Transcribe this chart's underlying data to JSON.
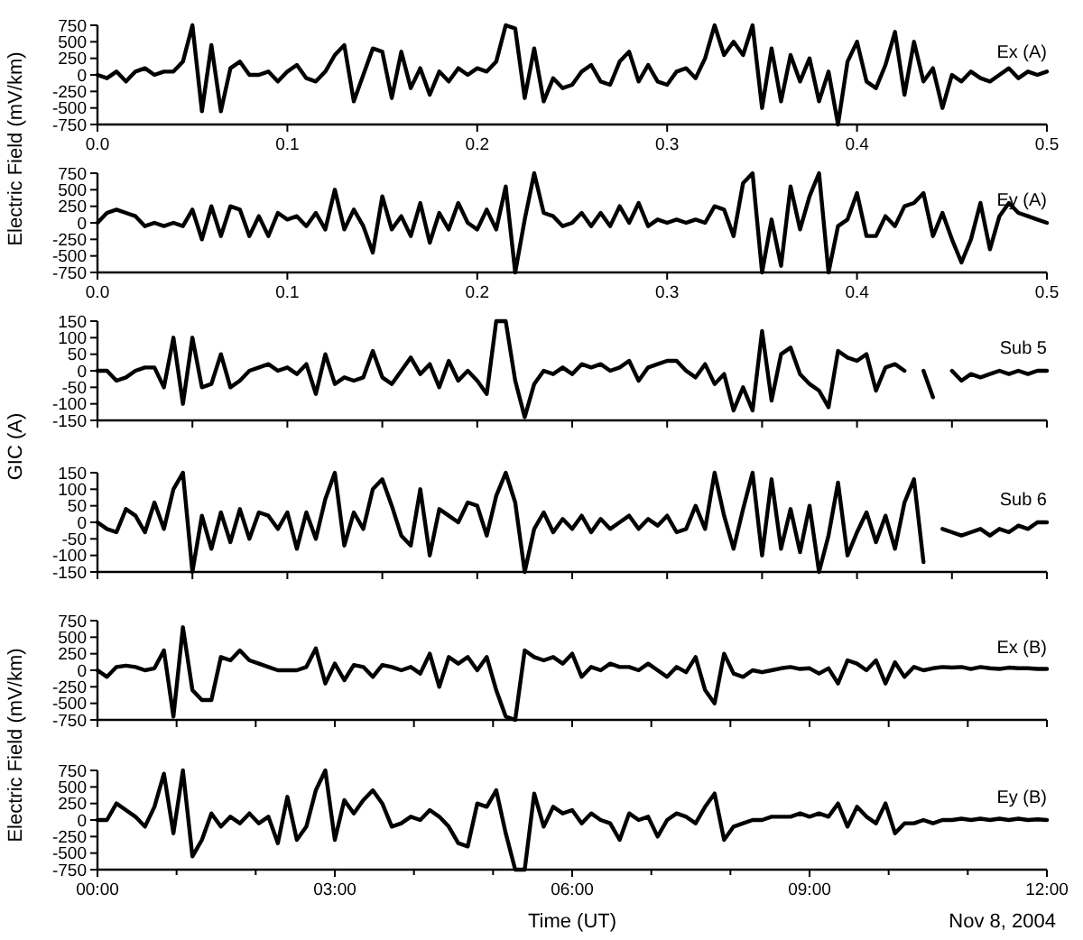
{
  "chart_data": [
    {
      "type": "line",
      "ylabel": "Electric Field (mV/km)",
      "xlim": [
        0,
        0.5
      ],
      "xticks": [
        {
          "value": 0,
          "label": "0.0"
        },
        0.1,
        0.2,
        0.3,
        0.4,
        0.5
      ],
      "ylim": [
        -750,
        750
      ],
      "yticks": [
        -750,
        -500,
        -250,
        0,
        250,
        500,
        750
      ],
      "x": [
        0,
        0.005,
        0.01,
        0.015,
        0.02,
        0.025,
        0.03,
        0.035,
        0.04,
        0.045,
        0.05,
        0.055,
        0.06,
        0.065,
        0.07,
        0.075,
        0.08,
        0.085,
        0.09,
        0.095,
        0.1,
        0.105,
        0.11,
        0.115,
        0.12,
        0.125,
        0.13,
        0.135,
        0.14,
        0.145,
        0.15,
        0.155,
        0.16,
        0.165,
        0.17,
        0.175,
        0.18,
        0.185,
        0.19,
        0.195,
        0.2,
        0.205,
        0.21,
        0.215,
        0.22,
        0.225,
        0.23,
        0.235,
        0.24,
        0.245,
        0.25,
        0.255,
        0.26,
        0.265,
        0.27,
        0.275,
        0.28,
        0.285,
        0.29,
        0.295,
        0.3,
        0.305,
        0.31,
        0.315,
        0.32,
        0.325,
        0.33,
        0.335,
        0.34,
        0.345,
        0.35,
        0.355,
        0.36,
        0.365,
        0.37,
        0.375,
        0.38,
        0.385,
        0.39,
        0.395,
        0.4,
        0.405,
        0.41,
        0.415,
        0.42,
        0.425,
        0.43,
        0.435,
        0.44,
        0.445,
        0.45,
        0.455,
        0.46,
        0.465,
        0.47,
        0.475,
        0.48,
        0.485,
        0.49,
        0.495,
        0.5
      ],
      "series": [
        {
          "name": "Ex (A)",
          "color": "#000000",
          "values": [
            0,
            -50,
            50,
            -100,
            50,
            100,
            0,
            50,
            50,
            200,
            750,
            -550,
            450,
            -550,
            100,
            200,
            0,
            0,
            50,
            -100,
            50,
            150,
            -50,
            -100,
            50,
            300,
            450,
            -400,
            0,
            400,
            350,
            -350,
            350,
            -200,
            100,
            -300,
            50,
            -100,
            100,
            0,
            100,
            50,
            200,
            750,
            700,
            -350,
            400,
            -400,
            -50,
            -200,
            -150,
            50,
            150,
            -100,
            -150,
            200,
            350,
            -100,
            150,
            -100,
            -150,
            50,
            100,
            -50,
            250,
            750,
            300,
            500,
            300,
            750,
            -500,
            400,
            -400,
            300,
            -100,
            250,
            -400,
            50,
            -750,
            200,
            500,
            -100,
            -200,
            150,
            650,
            -300,
            500,
            -100,
            100,
            -500,
            0,
            -100,
            50,
            -50,
            -100,
            0,
            100,
            -50,
            50,
            0,
            50
          ]
        }
      ]
    },
    {
      "type": "line",
      "xlim": [
        0,
        0.5
      ],
      "xticks": [
        {
          "value": 0,
          "label": "0.0"
        },
        0.1,
        0.2,
        0.3,
        0.4,
        0.5
      ],
      "ylim": [
        -750,
        750
      ],
      "yticks": [
        -750,
        -500,
        -250,
        0,
        250,
        500,
        750
      ],
      "x": [
        0,
        0.005,
        0.01,
        0.015,
        0.02,
        0.025,
        0.03,
        0.035,
        0.04,
        0.045,
        0.05,
        0.055,
        0.06,
        0.065,
        0.07,
        0.075,
        0.08,
        0.085,
        0.09,
        0.095,
        0.1,
        0.105,
        0.11,
        0.115,
        0.12,
        0.125,
        0.13,
        0.135,
        0.14,
        0.145,
        0.15,
        0.155,
        0.16,
        0.165,
        0.17,
        0.175,
        0.18,
        0.185,
        0.19,
        0.195,
        0.2,
        0.205,
        0.21,
        0.215,
        0.22,
        0.225,
        0.23,
        0.235,
        0.24,
        0.245,
        0.25,
        0.255,
        0.26,
        0.265,
        0.27,
        0.275,
        0.28,
        0.285,
        0.29,
        0.295,
        0.3,
        0.305,
        0.31,
        0.315,
        0.32,
        0.325,
        0.33,
        0.335,
        0.34,
        0.345,
        0.35,
        0.355,
        0.36,
        0.365,
        0.37,
        0.375,
        0.38,
        0.385,
        0.39,
        0.395,
        0.4,
        0.405,
        0.41,
        0.415,
        0.42,
        0.425,
        0.43,
        0.435,
        0.44,
        0.445,
        0.45,
        0.455,
        0.46,
        0.465,
        0.47,
        0.475,
        0.48,
        0.485,
        0.49,
        0.495,
        0.5
      ],
      "series": [
        {
          "name": "Ey (A)",
          "color": "#000000",
          "values": [
            0,
            150,
            200,
            150,
            100,
            -50,
            0,
            -50,
            0,
            -50,
            200,
            -250,
            250,
            -200,
            250,
            200,
            -200,
            100,
            -200,
            150,
            50,
            100,
            -50,
            150,
            -100,
            500,
            -100,
            200,
            -50,
            -450,
            400,
            -100,
            100,
            -200,
            300,
            -300,
            150,
            -100,
            300,
            0,
            -100,
            200,
            -100,
            550,
            -750,
            50,
            750,
            150,
            100,
            -50,
            0,
            150,
            -50,
            150,
            -50,
            250,
            0,
            300,
            -50,
            50,
            0,
            50,
            0,
            50,
            0,
            250,
            200,
            -200,
            600,
            750,
            -750,
            50,
            -650,
            550,
            -100,
            400,
            750,
            -750,
            -50,
            50,
            450,
            -200,
            -200,
            100,
            -50,
            250,
            300,
            450,
            -200,
            150,
            -250,
            -600,
            -250,
            300,
            -400,
            100,
            300,
            150,
            100,
            50,
            0
          ]
        }
      ]
    },
    {
      "type": "line",
      "ylabel": "GIC (A)",
      "tick_labels": "y",
      "xlim": [
        0,
        0.5
      ],
      "xticks": [
        {
          "value": 0,
          "label": null
        },
        {
          "value": 0.05,
          "label": null
        },
        {
          "value": 0.1,
          "label": null
        },
        {
          "value": 0.15,
          "label": null
        },
        {
          "value": 0.2,
          "label": null
        },
        {
          "value": 0.25,
          "label": null
        },
        {
          "value": 0.3,
          "label": null
        },
        {
          "value": 0.35,
          "label": null
        },
        {
          "value": 0.4,
          "label": null
        },
        {
          "value": 0.45,
          "label": null
        },
        {
          "value": 0.5,
          "label": null
        }
      ],
      "ylim": [
        -150,
        150
      ],
      "yticks": [
        -150,
        -100,
        -50,
        0,
        50,
        100,
        150
      ],
      "x": [
        0,
        0.005,
        0.01,
        0.015,
        0.02,
        0.025,
        0.03,
        0.035,
        0.04,
        0.045,
        0.05,
        0.055,
        0.06,
        0.065,
        0.07,
        0.075,
        0.08,
        0.085,
        0.09,
        0.095,
        0.1,
        0.105,
        0.11,
        0.115,
        0.12,
        0.125,
        0.13,
        0.135,
        0.14,
        0.145,
        0.15,
        0.155,
        0.16,
        0.165,
        0.17,
        0.175,
        0.18,
        0.185,
        0.19,
        0.195,
        0.2,
        0.205,
        0.21,
        0.215,
        0.22,
        0.225,
        0.23,
        0.235,
        0.24,
        0.245,
        0.25,
        0.255,
        0.26,
        0.265,
        0.27,
        0.275,
        0.28,
        0.285,
        0.29,
        0.295,
        0.3,
        0.305,
        0.31,
        0.315,
        0.32,
        0.325,
        0.33,
        0.335,
        0.34,
        0.345,
        0.35,
        0.355,
        0.36,
        0.365,
        0.37,
        0.375,
        0.38,
        0.385,
        0.39,
        0.395,
        0.4,
        0.405,
        0.41,
        0.415,
        0.42,
        0.425,
        0.43,
        0.435,
        0.44,
        0.445,
        0.45,
        0.455,
        0.46,
        0.465,
        0.47,
        0.475,
        0.48,
        0.485,
        0.49,
        0.495,
        0.5
      ],
      "series": [
        {
          "name": "Sub 5",
          "color": "#000000",
          "values": [
            0,
            0,
            -30,
            -20,
            0,
            10,
            10,
            -50,
            100,
            -100,
            100,
            -50,
            -40,
            50,
            -50,
            -30,
            0,
            10,
            20,
            0,
            10,
            -10,
            20,
            -70,
            50,
            -40,
            -20,
            -30,
            -20,
            60,
            -20,
            -40,
            0,
            40,
            -10,
            20,
            -50,
            30,
            -30,
            0,
            -30,
            -70,
            150,
            150,
            -30,
            -140,
            -40,
            0,
            -10,
            10,
            -10,
            20,
            10,
            20,
            0,
            10,
            30,
            -30,
            10,
            20,
            30,
            30,
            0,
            -20,
            20,
            -40,
            -10,
            -120,
            -50,
            -120,
            120,
            -90,
            50,
            70,
            -10,
            -40,
            -60,
            -110,
            60,
            40,
            30,
            50,
            -60,
            10,
            20,
            0,
            null,
            0,
            -80,
            null,
            0,
            -30,
            -10,
            -20,
            -10,
            0,
            -10,
            0,
            -10,
            0,
            0
          ]
        }
      ]
    },
    {
      "type": "line",
      "tick_labels": "y",
      "xlim": [
        0,
        0.5
      ],
      "xticks": [
        {
          "value": 0,
          "label": null
        },
        {
          "value": 0.05,
          "label": null
        },
        {
          "value": 0.1,
          "label": null
        },
        {
          "value": 0.15,
          "label": null
        },
        {
          "value": 0.2,
          "label": null
        },
        {
          "value": 0.25,
          "label": null
        },
        {
          "value": 0.3,
          "label": null
        },
        {
          "value": 0.35,
          "label": null
        },
        {
          "value": 0.4,
          "label": null
        },
        {
          "value": 0.45,
          "label": null
        },
        {
          "value": 0.5,
          "label": null
        }
      ],
      "ylim": [
        -150,
        150
      ],
      "yticks": [
        -150,
        -100,
        -50,
        0,
        50,
        100,
        150
      ],
      "x": [
        0,
        0.005,
        0.01,
        0.015,
        0.02,
        0.025,
        0.03,
        0.035,
        0.04,
        0.045,
        0.05,
        0.055,
        0.06,
        0.065,
        0.07,
        0.075,
        0.08,
        0.085,
        0.09,
        0.095,
        0.1,
        0.105,
        0.11,
        0.115,
        0.12,
        0.125,
        0.13,
        0.135,
        0.14,
        0.145,
        0.15,
        0.155,
        0.16,
        0.165,
        0.17,
        0.175,
        0.18,
        0.185,
        0.19,
        0.195,
        0.2,
        0.205,
        0.21,
        0.215,
        0.22,
        0.225,
        0.23,
        0.235,
        0.24,
        0.245,
        0.25,
        0.255,
        0.26,
        0.265,
        0.27,
        0.275,
        0.28,
        0.285,
        0.29,
        0.295,
        0.3,
        0.305,
        0.31,
        0.315,
        0.32,
        0.325,
        0.33,
        0.335,
        0.34,
        0.345,
        0.35,
        0.355,
        0.36,
        0.365,
        0.37,
        0.375,
        0.38,
        0.385,
        0.39,
        0.395,
        0.4,
        0.405,
        0.41,
        0.415,
        0.42,
        0.425,
        0.43,
        0.435,
        0.44,
        0.445,
        0.45,
        0.455,
        0.46,
        0.465,
        0.47,
        0.475,
        0.48,
        0.485,
        0.49,
        0.495,
        0.5
      ],
      "series": [
        {
          "name": "Sub 6",
          "color": "#000000",
          "values": [
            0,
            -20,
            -30,
            40,
            20,
            -30,
            60,
            -20,
            100,
            150,
            -150,
            20,
            -80,
            30,
            -60,
            40,
            -50,
            30,
            20,
            -20,
            30,
            -80,
            30,
            -50,
            70,
            150,
            -70,
            30,
            -20,
            100,
            130,
            50,
            -40,
            -70,
            100,
            -100,
            40,
            20,
            0,
            60,
            50,
            -40,
            80,
            150,
            60,
            -150,
            -20,
            30,
            -30,
            10,
            -20,
            20,
            -30,
            10,
            -20,
            0,
            20,
            -20,
            10,
            -10,
            20,
            -30,
            -20,
            50,
            -20,
            150,
            20,
            -80,
            40,
            150,
            -100,
            130,
            -80,
            40,
            -90,
            50,
            -150,
            -40,
            120,
            -100,
            -30,
            30,
            -60,
            20,
            -80,
            60,
            130,
            -120,
            null,
            -20,
            -30,
            -40,
            -30,
            -20,
            -40,
            -20,
            -30,
            -10,
            -20,
            0,
            0
          ]
        }
      ]
    },
    {
      "type": "line",
      "ylabel": "Electric Field (mV/km)",
      "tick_labels": "y",
      "xlim": [
        0,
        12
      ],
      "xticks": [
        {
          "value": 0,
          "label": null
        },
        {
          "value": 1,
          "label": null
        },
        {
          "value": 2,
          "label": null
        },
        {
          "value": 3,
          "label": null
        },
        {
          "value": 4,
          "label": null
        },
        {
          "value": 5,
          "label": null
        },
        {
          "value": 6,
          "label": null
        },
        {
          "value": 7,
          "label": null
        },
        {
          "value": 8,
          "label": null
        },
        {
          "value": 9,
          "label": null
        },
        {
          "value": 10,
          "label": null
        },
        {
          "value": 11,
          "label": null
        },
        {
          "value": 12,
          "label": null
        }
      ],
      "ylim": [
        -750,
        750
      ],
      "yticks": [
        -750,
        -500,
        -250,
        0,
        250,
        500,
        750
      ],
      "x": [
        0,
        0.12,
        0.24,
        0.36,
        0.48,
        0.6,
        0.72,
        0.84,
        0.96,
        1.08,
        1.2,
        1.32,
        1.44,
        1.56,
        1.68,
        1.8,
        1.92,
        2.04,
        2.16,
        2.28,
        2.4,
        2.52,
        2.64,
        2.76,
        2.88,
        3,
        3.12,
        3.24,
        3.36,
        3.48,
        3.6,
        3.72,
        3.84,
        3.96,
        4.08,
        4.2,
        4.32,
        4.44,
        4.56,
        4.68,
        4.8,
        4.92,
        5.04,
        5.16,
        5.28,
        5.4,
        5.52,
        5.64,
        5.76,
        5.88,
        6,
        6.12,
        6.24,
        6.36,
        6.48,
        6.6,
        6.72,
        6.84,
        6.96,
        7.08,
        7.2,
        7.32,
        7.44,
        7.56,
        7.68,
        7.8,
        7.92,
        8.04,
        8.16,
        8.28,
        8.4,
        8.52,
        8.64,
        8.76,
        8.88,
        9,
        9.12,
        9.24,
        9.36,
        9.48,
        9.6,
        9.72,
        9.84,
        9.96,
        10.08,
        10.2,
        10.32,
        10.44,
        10.56,
        10.68,
        10.8,
        10.92,
        11.04,
        11.16,
        11.28,
        11.4,
        11.52,
        11.64,
        11.76,
        11.88,
        12
      ],
      "series": [
        {
          "name": "Ex (B)",
          "color": "#000000",
          "values": [
            0,
            -100,
            50,
            70,
            50,
            0,
            30,
            300,
            -700,
            650,
            -300,
            -450,
            -450,
            200,
            150,
            300,
            150,
            100,
            50,
            0,
            0,
            0,
            50,
            330,
            -200,
            100,
            -150,
            80,
            50,
            -100,
            80,
            50,
            0,
            50,
            -50,
            250,
            -250,
            200,
            100,
            200,
            0,
            200,
            -300,
            -700,
            -750,
            300,
            200,
            150,
            200,
            100,
            250,
            -100,
            50,
            0,
            100,
            50,
            50,
            0,
            100,
            0,
            -100,
            50,
            -30,
            200,
            -300,
            -500,
            250,
            -50,
            -100,
            0,
            -30,
            0,
            30,
            50,
            20,
            30,
            -50,
            30,
            -200,
            150,
            100,
            0,
            150,
            -200,
            120,
            -100,
            50,
            0,
            30,
            50,
            40,
            50,
            20,
            50,
            30,
            20,
            40,
            30,
            30,
            20,
            20
          ]
        }
      ]
    },
    {
      "type": "line",
      "xlabel": "Time (UT)",
      "annotations": [
        "Nov 8, 2004"
      ],
      "xlim": [
        0,
        12
      ],
      "xticks": [
        {
          "value": 0,
          "label": "00:00"
        },
        {
          "value": 1,
          "label": null
        },
        {
          "value": 2,
          "label": null
        },
        {
          "value": 3,
          "label": "03:00"
        },
        {
          "value": 4,
          "label": null
        },
        {
          "value": 5,
          "label": null
        },
        {
          "value": 6,
          "label": "06:00"
        },
        {
          "value": 7,
          "label": null
        },
        {
          "value": 8,
          "label": null
        },
        {
          "value": 9,
          "label": "09:00"
        },
        {
          "value": 10,
          "label": null
        },
        {
          "value": 11,
          "label": null
        },
        {
          "value": 12,
          "label": "12:00"
        }
      ],
      "ylim": [
        -750,
        750
      ],
      "yticks": [
        -750,
        -500,
        -250,
        0,
        250,
        500,
        750
      ],
      "x": [
        0,
        0.12,
        0.24,
        0.36,
        0.48,
        0.6,
        0.72,
        0.84,
        0.96,
        1.08,
        1.2,
        1.32,
        1.44,
        1.56,
        1.68,
        1.8,
        1.92,
        2.04,
        2.16,
        2.28,
        2.4,
        2.52,
        2.64,
        2.76,
        2.88,
        3,
        3.12,
        3.24,
        3.36,
        3.48,
        3.6,
        3.72,
        3.84,
        3.96,
        4.08,
        4.2,
        4.32,
        4.44,
        4.56,
        4.68,
        4.8,
        4.92,
        5.04,
        5.16,
        5.28,
        5.4,
        5.52,
        5.64,
        5.76,
        5.88,
        6,
        6.12,
        6.24,
        6.36,
        6.48,
        6.6,
        6.72,
        6.84,
        6.96,
        7.08,
        7.2,
        7.32,
        7.44,
        7.56,
        7.68,
        7.8,
        7.92,
        8.04,
        8.16,
        8.28,
        8.4,
        8.52,
        8.64,
        8.76,
        8.88,
        9,
        9.12,
        9.24,
        9.36,
        9.48,
        9.6,
        9.72,
        9.84,
        9.96,
        10.08,
        10.2,
        10.32,
        10.44,
        10.56,
        10.68,
        10.8,
        10.92,
        11.04,
        11.16,
        11.28,
        11.4,
        11.52,
        11.64,
        11.76,
        11.88,
        12
      ],
      "series": [
        {
          "name": "Ey (B)",
          "color": "#000000",
          "values": [
            0,
            0,
            250,
            150,
            50,
            -100,
            200,
            700,
            -200,
            750,
            -550,
            -300,
            100,
            -100,
            50,
            -50,
            100,
            -50,
            50,
            -350,
            350,
            -300,
            -100,
            450,
            750,
            -300,
            300,
            100,
            300,
            450,
            250,
            -100,
            -50,
            50,
            0,
            150,
            50,
            -100,
            -350,
            -400,
            250,
            200,
            450,
            -200,
            -750,
            -750,
            400,
            -100,
            200,
            100,
            150,
            -50,
            100,
            0,
            -50,
            -300,
            100,
            0,
            50,
            -250,
            0,
            100,
            50,
            -50,
            200,
            400,
            -300,
            -100,
            -50,
            0,
            0,
            50,
            50,
            50,
            100,
            50,
            100,
            50,
            250,
            -100,
            200,
            50,
            -50,
            250,
            -200,
            -50,
            -50,
            0,
            -50,
            0,
            0,
            20,
            0,
            20,
            0,
            20,
            0,
            20,
            0,
            10,
            0
          ]
        }
      ]
    }
  ]
}
